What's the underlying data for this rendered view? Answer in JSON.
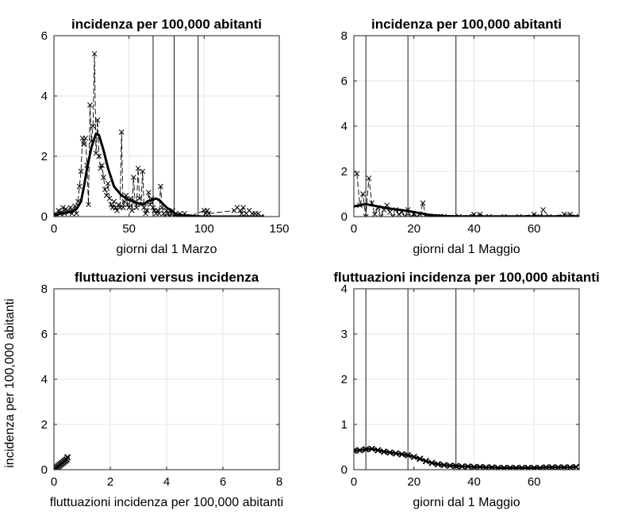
{
  "chart_data": [
    {
      "type": "line",
      "title": "incidenza per 100,000 abitanti",
      "xlabel": "giorni dal 1 Marzo",
      "ylabel": "",
      "xlim": [
        0,
        150
      ],
      "ylim": [
        0,
        6
      ],
      "xticks": [
        "0",
        "50",
        "100",
        "150"
      ],
      "yticks": [
        "0",
        "2",
        "4",
        "6"
      ],
      "grid": true,
      "vlines": [
        66,
        80,
        96
      ],
      "series": [
        {
          "style": "dashed-x",
          "x": [
            1,
            2,
            3,
            4,
            5,
            6,
            7,
            8,
            9,
            10,
            11,
            12,
            13,
            14,
            15,
            16,
            17,
            18,
            19,
            20,
            21,
            22,
            23,
            24,
            25,
            26,
            27,
            28,
            29,
            30,
            31,
            32,
            33,
            34,
            35,
            36,
            37,
            38,
            39,
            40,
            41,
            42,
            43,
            44,
            45,
            46,
            47,
            48,
            49,
            50,
            51,
            52,
            53,
            54,
            55,
            56,
            57,
            58,
            59,
            60,
            61,
            62,
            63,
            64,
            65,
            66,
            67,
            68,
            69,
            70,
            71,
            72,
            73,
            74,
            75,
            76,
            77,
            78,
            79,
            80,
            81,
            82,
            83,
            84,
            85,
            86,
            87,
            88,
            89,
            90,
            100,
            101,
            102,
            103,
            120,
            122,
            124,
            125,
            126,
            128,
            130,
            132,
            134,
            136,
            138
          ],
          "y": [
            0.1,
            0.05,
            0.2,
            0.1,
            0.15,
            0.3,
            0.1,
            0.25,
            0.2,
            0.15,
            0.3,
            0.1,
            0.2,
            0.35,
            0.1,
            0.5,
            1.0,
            1.5,
            2.6,
            2.4,
            2.6,
            1.7,
            0.4,
            3.7,
            2.5,
            3.0,
            5.4,
            2.1,
            3.2,
            2.0,
            1.6,
            1.7,
            1.3,
            0.9,
            0.7,
            1.1,
            0.6,
            0.4,
            0.3,
            0.5,
            0.3,
            0.2,
            0.4,
            0.3,
            2.8,
            0.3,
            0.5,
            0.7,
            0.4,
            0.3,
            0.6,
            0.2,
            1.3,
            0.5,
            0.3,
            1.6,
            0.6,
            0.4,
            1.5,
            0.3,
            0.1,
            0.2,
            0.8,
            0.4,
            0.6,
            0.3,
            0.2,
            0.1,
            0.2,
            0.1,
            1.0,
            0.3,
            0.1,
            0.0,
            0.2,
            0.1,
            0.0,
            0.1,
            0.2,
            0.0,
            0.1,
            0.0,
            0.0,
            0.1,
            0.0,
            0.0,
            0.1,
            0.0,
            0.0,
            0.0,
            0.2,
            0.1,
            0.2,
            0.1,
            0.2,
            0.3,
            0.2,
            0.1,
            0.3,
            0.1,
            0.2,
            0.1,
            0.1,
            0.1,
            0.0
          ]
        },
        {
          "style": "thick-solid",
          "x": [
            0,
            10,
            15,
            18,
            20,
            22,
            25,
            28,
            30,
            33,
            36,
            40,
            45,
            50,
            55,
            60,
            62,
            65,
            68,
            70,
            72,
            75,
            78,
            80,
            82,
            85,
            88,
            90,
            95,
            100,
            140
          ],
          "y": [
            0.05,
            0.15,
            0.25,
            0.5,
            1.0,
            1.6,
            2.3,
            2.75,
            2.7,
            2.2,
            1.6,
            1.0,
            0.7,
            0.55,
            0.45,
            0.4,
            0.5,
            0.55,
            0.6,
            0.55,
            0.45,
            0.3,
            0.2,
            0.12,
            0.08,
            0.05,
            0.03,
            0.02,
            0.01,
            0.0,
            0.0
          ]
        }
      ]
    },
    {
      "type": "line",
      "title": "incidenza per 100,000 abitanti",
      "xlabel": "giorni dal 1 Maggio",
      "ylabel": "",
      "xlim": [
        0,
        75
      ],
      "ylim": [
        0,
        8
      ],
      "xticks": [
        "0",
        "20",
        "40",
        "60"
      ],
      "yticks": [
        "0",
        "2",
        "4",
        "6",
        "8"
      ],
      "grid": true,
      "vlines": [
        4,
        18,
        34
      ],
      "series": [
        {
          "style": "dashed-x",
          "x": [
            1,
            2,
            3,
            4,
            5,
            6,
            7,
            8,
            9,
            10,
            11,
            12,
            13,
            14,
            15,
            16,
            17,
            18,
            19,
            20,
            21,
            22,
            23,
            24,
            25,
            26,
            27,
            28,
            29,
            30,
            35,
            40,
            42,
            45,
            50,
            55,
            60,
            62,
            63,
            65,
            70,
            72,
            75
          ],
          "y": [
            1.9,
            0.5,
            1.0,
            0.0,
            1.7,
            0.6,
            0.1,
            0.4,
            0.0,
            0.3,
            0.5,
            0.2,
            0.0,
            0.3,
            0.1,
            0.2,
            0.0,
            0.3,
            0.0,
            0.1,
            0.0,
            0.1,
            0.6,
            0.0,
            0.0,
            0.0,
            0.0,
            0.0,
            0.0,
            0.0,
            0.0,
            0.1,
            0.1,
            0.0,
            0.0,
            0.0,
            0.1,
            0.0,
            0.3,
            0.0,
            0.1,
            0.1,
            0.0
          ]
        },
        {
          "style": "thick-solid",
          "x": [
            0,
            2,
            4,
            6,
            8,
            10,
            12,
            15,
            18,
            20,
            22,
            25,
            28,
            30,
            35,
            40,
            50,
            60,
            75
          ],
          "y": [
            0.45,
            0.5,
            0.55,
            0.5,
            0.45,
            0.4,
            0.35,
            0.3,
            0.25,
            0.2,
            0.15,
            0.08,
            0.04,
            0.02,
            0.01,
            0.01,
            0.01,
            0.01,
            0.01
          ]
        }
      ]
    },
    {
      "type": "line",
      "title": "fluttuazioni versus incidenza",
      "xlabel": "fluttuazioni incidenza per 100,000 abitanti",
      "ylabel": "incidenza per 100,000 abitanti",
      "xlim": [
        0,
        8
      ],
      "ylim": [
        0,
        8
      ],
      "xticks": [
        "0",
        "2",
        "4",
        "6",
        "8"
      ],
      "yticks": [
        "0",
        "2",
        "4",
        "6",
        "8"
      ],
      "grid": true,
      "vlines": [],
      "series": [
        {
          "style": "thick-solid-x",
          "x": [
            0.0,
            0.02,
            0.05,
            0.1,
            0.15,
            0.2,
            0.25,
            0.3,
            0.35,
            0.4,
            0.45,
            0.48
          ],
          "y": [
            0.0,
            0.02,
            0.05,
            0.1,
            0.15,
            0.2,
            0.25,
            0.3,
            0.35,
            0.4,
            0.45,
            0.55
          ]
        }
      ]
    },
    {
      "type": "line",
      "title": "fluttuazioni incidenza per 100,000 abitanti",
      "xlabel": "giorni dal 1 Maggio",
      "ylabel": "",
      "xlim": [
        0,
        75
      ],
      "ylim": [
        0,
        4
      ],
      "xticks": [
        "0",
        "20",
        "40",
        "60"
      ],
      "yticks": [
        "0",
        "1",
        "2",
        "3",
        "4"
      ],
      "grid": true,
      "vlines": [
        4,
        18,
        34
      ],
      "series": [
        {
          "style": "thick-solid-x",
          "x": [
            0,
            2,
            4,
            6,
            8,
            10,
            12,
            14,
            16,
            18,
            20,
            22,
            24,
            26,
            28,
            30,
            32,
            34,
            36,
            38,
            40,
            42,
            44,
            46,
            48,
            50,
            52,
            54,
            56,
            58,
            60,
            62,
            64,
            66,
            68,
            70,
            72,
            74
          ],
          "y": [
            0.42,
            0.43,
            0.45,
            0.46,
            0.43,
            0.4,
            0.38,
            0.36,
            0.34,
            0.32,
            0.28,
            0.24,
            0.19,
            0.15,
            0.12,
            0.1,
            0.09,
            0.08,
            0.07,
            0.07,
            0.06,
            0.06,
            0.05,
            0.05,
            0.04,
            0.04,
            0.04,
            0.04,
            0.04,
            0.04,
            0.04,
            0.04,
            0.05,
            0.05,
            0.05,
            0.05,
            0.05,
            0.06
          ]
        }
      ]
    }
  ]
}
